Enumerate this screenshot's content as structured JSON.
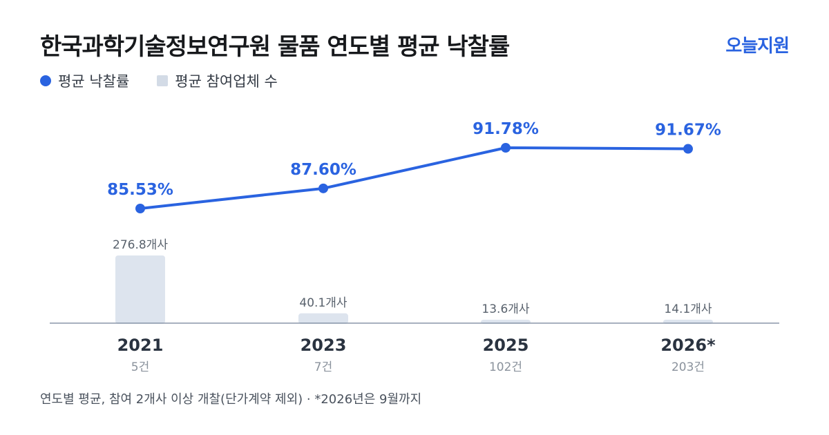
{
  "header": {
    "title": "한국과학기술정보연구원 물품 연도별 평균 낙찰률",
    "brand": "오늘지원"
  },
  "legend": {
    "line_label": "평균 낙찰률",
    "bar_label": "평균 참여업체 수"
  },
  "footnote": "연도별 평균, 참여 2개사 이상 개찰(단가계약 제외) · *2026년은 9월까지",
  "colors": {
    "line": "#2a63e0",
    "bar": "#dde4ee",
    "axis": "#8a96a8"
  },
  "chart_data": {
    "type": "bar",
    "categories": [
      "2021",
      "2023",
      "2025",
      "2026*"
    ],
    "category_sublabels": [
      "5건",
      "7건",
      "102건",
      "203건"
    ],
    "series": [
      {
        "name": "평균 낙찰률",
        "type": "line",
        "values": [
          85.53,
          87.6,
          91.78,
          91.67
        ],
        "labels": [
          "85.53%",
          "87.60%",
          "91.78%",
          "91.67%"
        ]
      },
      {
        "name": "평균 참여업체 수",
        "type": "bar",
        "values": [
          276.8,
          40.1,
          13.6,
          14.1
        ],
        "labels": [
          "276.8개사",
          "40.1개사",
          "13.6개사",
          "14.1개사"
        ]
      }
    ],
    "line_ylim": [
      80,
      95
    ],
    "bar_ylim": [
      0,
      276.8
    ],
    "grid": false,
    "legend_position": "top-left"
  }
}
